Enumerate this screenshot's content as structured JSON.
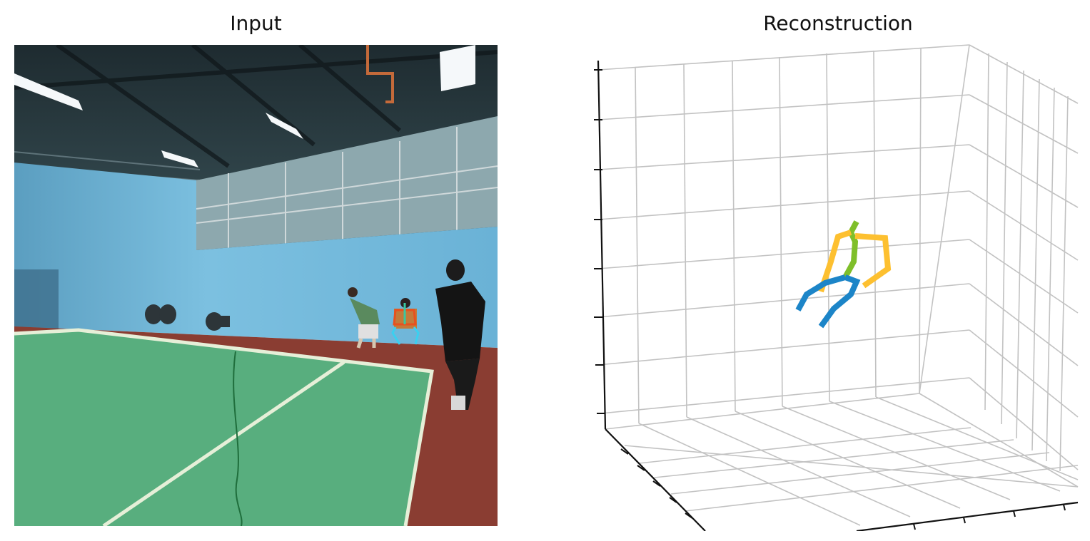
{
  "panels": {
    "input": {
      "title": "Input"
    },
    "reconstruction": {
      "title": "Reconstruction"
    }
  },
  "colors": {
    "wall": "#6fb3d6",
    "floor_court": "#58ae7e",
    "floor_surround": "#8a3d32",
    "court_line": "#e6efd8",
    "grid": "#c2c2c2",
    "axis": "#111111",
    "pose_head": "#7fbf2a",
    "pose_spine": "#7fbf2a",
    "pose_arms": "#fdc030",
    "pose_legs": "#1c85c8",
    "overlay_torso": "#e8501e",
    "overlay_spine": "#38c8a0",
    "overlay_legs": "#3ad0f0"
  },
  "icons": [
    "camera-image",
    "skeleton-overlay",
    "3d-grid"
  ]
}
